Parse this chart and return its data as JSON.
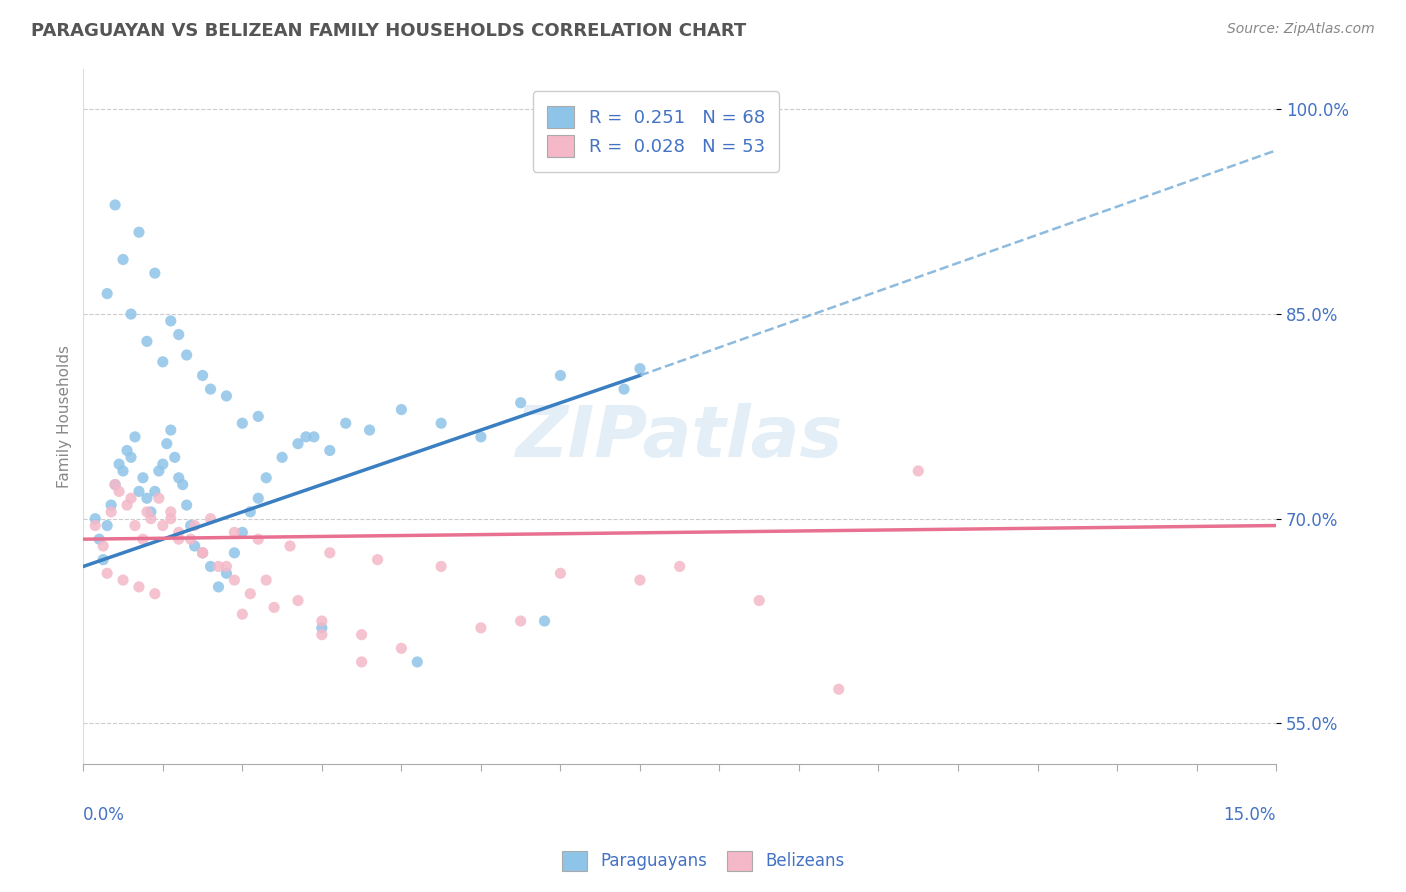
{
  "title": "PARAGUAYAN VS BELIZEAN FAMILY HOUSEHOLDS CORRELATION CHART",
  "source": "Source: ZipAtlas.com",
  "ylabel": "Family Households",
  "xlim": [
    0.0,
    15.0
  ],
  "ylim": [
    52.0,
    103.0
  ],
  "yticks": [
    55.0,
    70.0,
    85.0,
    100.0
  ],
  "paraguayan_color": "#8ec4e8",
  "belizean_color": "#f4b8c8",
  "paraguayan_line_color": "#3a7fc1",
  "belizean_line_color": "#e87090",
  "dash_line_color": "#7ab0d8",
  "legend_R_paraguayan": "0.251",
  "legend_N_paraguayan": "68",
  "legend_R_belizean": "0.028",
  "legend_N_belizean": "53",
  "watermark": "ZIPatlas",
  "par_line_x0": 0.0,
  "par_line_y0": 66.5,
  "par_line_x1": 7.0,
  "par_line_y1": 80.5,
  "bel_line_x0": 0.0,
  "bel_line_y0": 68.5,
  "bel_line_x1": 15.0,
  "bel_line_y1": 69.5,
  "dash_line_x0": 7.0,
  "dash_line_y0": 80.5,
  "dash_line_x1": 15.0,
  "dash_line_y1": 97.0,
  "par_x": [
    0.15,
    0.2,
    0.25,
    0.3,
    0.35,
    0.4,
    0.45,
    0.5,
    0.55,
    0.6,
    0.65,
    0.7,
    0.75,
    0.8,
    0.85,
    0.9,
    0.95,
    1.0,
    1.05,
    1.1,
    1.15,
    1.2,
    1.25,
    1.3,
    1.35,
    1.4,
    1.5,
    1.6,
    1.7,
    1.8,
    1.9,
    2.0,
    2.1,
    2.2,
    2.3,
    2.5,
    2.7,
    2.9,
    3.1,
    3.3,
    3.6,
    4.0,
    4.5,
    5.0,
    5.5,
    6.0,
    6.8,
    7.0,
    0.3,
    0.5,
    0.7,
    0.9,
    1.1,
    1.3,
    1.5,
    1.8,
    2.2,
    2.8,
    0.4,
    0.6,
    0.8,
    1.0,
    1.2,
    1.6,
    2.0,
    3.0,
    4.2,
    5.8
  ],
  "par_y": [
    70.0,
    68.5,
    67.0,
    69.5,
    71.0,
    72.5,
    74.0,
    73.5,
    75.0,
    74.5,
    76.0,
    72.0,
    73.0,
    71.5,
    70.5,
    72.0,
    73.5,
    74.0,
    75.5,
    76.5,
    74.5,
    73.0,
    72.5,
    71.0,
    69.5,
    68.0,
    67.5,
    66.5,
    65.0,
    66.0,
    67.5,
    69.0,
    70.5,
    71.5,
    73.0,
    74.5,
    75.5,
    76.0,
    75.0,
    77.0,
    76.5,
    78.0,
    77.0,
    76.0,
    78.5,
    80.5,
    79.5,
    81.0,
    86.5,
    89.0,
    91.0,
    88.0,
    84.5,
    82.0,
    80.5,
    79.0,
    77.5,
    76.0,
    93.0,
    85.0,
    83.0,
    81.5,
    83.5,
    79.5,
    77.0,
    62.0,
    59.5,
    62.5
  ],
  "bel_x": [
    0.15,
    0.25,
    0.35,
    0.45,
    0.55,
    0.65,
    0.75,
    0.85,
    0.95,
    1.1,
    1.2,
    1.35,
    1.5,
    1.7,
    1.9,
    2.1,
    2.4,
    2.7,
    3.0,
    3.5,
    4.0,
    5.0,
    6.0,
    7.0,
    8.5,
    10.5,
    0.3,
    0.5,
    0.7,
    0.9,
    1.1,
    1.4,
    1.6,
    1.9,
    2.2,
    2.6,
    3.1,
    3.7,
    4.5,
    0.4,
    0.6,
    0.8,
    1.0,
    1.2,
    1.5,
    1.8,
    2.3,
    3.5,
    5.5,
    7.5,
    9.5,
    3.0,
    2.0
  ],
  "bel_y": [
    69.5,
    68.0,
    70.5,
    72.0,
    71.0,
    69.5,
    68.5,
    70.0,
    71.5,
    70.0,
    69.0,
    68.5,
    67.5,
    66.5,
    65.5,
    64.5,
    63.5,
    64.0,
    62.5,
    61.5,
    60.5,
    62.0,
    66.0,
    65.5,
    64.0,
    73.5,
    66.0,
    65.5,
    65.0,
    64.5,
    70.5,
    69.5,
    70.0,
    69.0,
    68.5,
    68.0,
    67.5,
    67.0,
    66.5,
    72.5,
    71.5,
    70.5,
    69.5,
    68.5,
    67.5,
    66.5,
    65.5,
    59.5,
    62.5,
    66.5,
    57.5,
    61.5,
    63.0
  ]
}
